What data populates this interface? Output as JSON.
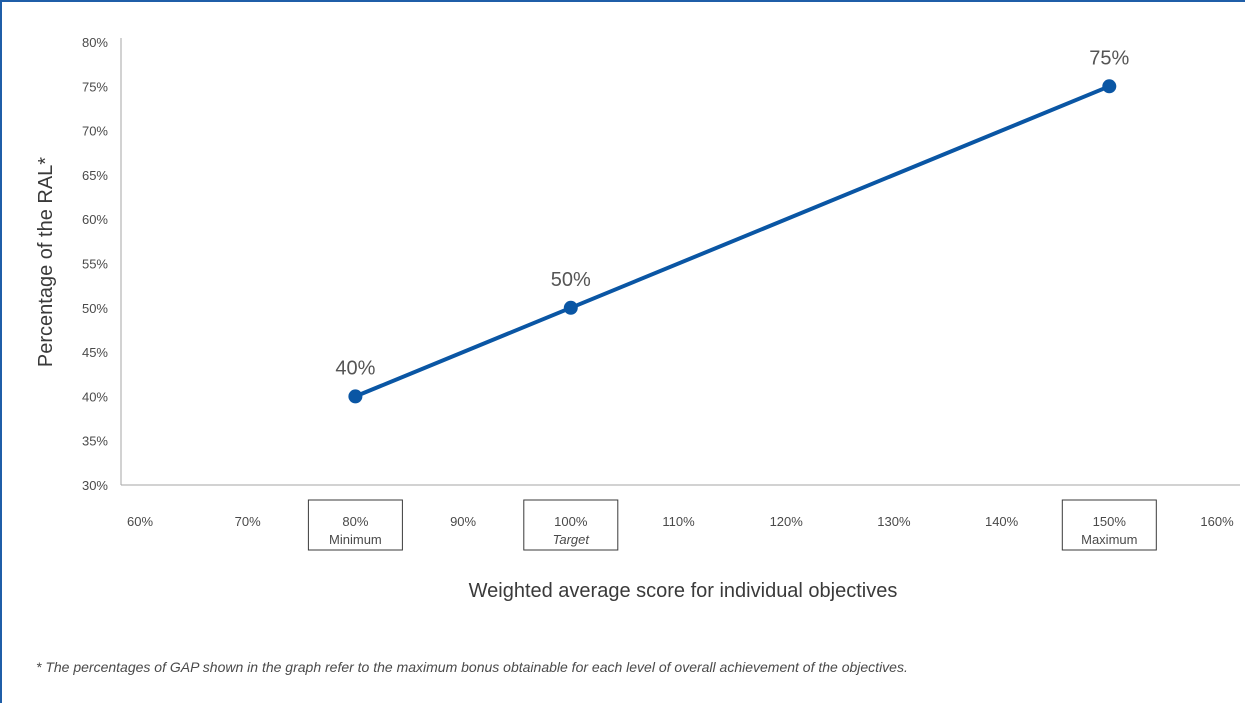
{
  "chart_data": {
    "type": "line",
    "x": [
      80,
      100,
      150
    ],
    "y": [
      40,
      50,
      75
    ],
    "data_labels": [
      "40%",
      "50%",
      "75%"
    ],
    "xlabel": "Weighted average score for individual objectives",
    "ylabel": "Percentage of the RAL*",
    "xlim": [
      60,
      160
    ],
    "ylim": [
      30,
      80
    ],
    "x_ticks": [
      {
        "value": 60,
        "label": "60%"
      },
      {
        "value": 70,
        "label": "70%"
      },
      {
        "value": 80,
        "label": "80%",
        "sublabel": "Minimum",
        "boxed": true
      },
      {
        "value": 90,
        "label": "90%"
      },
      {
        "value": 100,
        "label": "100%",
        "sublabel": "Target",
        "boxed": true,
        "italic_sublabel": true
      },
      {
        "value": 110,
        "label": "110%"
      },
      {
        "value": 120,
        "label": "120%"
      },
      {
        "value": 130,
        "label": "130%"
      },
      {
        "value": 140,
        "label": "140%"
      },
      {
        "value": 150,
        "label": "150%",
        "sublabel": "Maximum",
        "boxed": true
      },
      {
        "value": 160,
        "label": "160%"
      }
    ],
    "y_ticks": [
      {
        "value": 30,
        "label": "30%"
      },
      {
        "value": 35,
        "label": "35%"
      },
      {
        "value": 40,
        "label": "40%"
      },
      {
        "value": 45,
        "label": "45%"
      },
      {
        "value": 50,
        "label": "50%"
      },
      {
        "value": 55,
        "label": "55%"
      },
      {
        "value": 60,
        "label": "60%"
      },
      {
        "value": 65,
        "label": "65%"
      },
      {
        "value": 70,
        "label": "70%"
      },
      {
        "value": 75,
        "label": "75%"
      },
      {
        "value": 80,
        "label": "80%"
      }
    ],
    "grid": false,
    "line_color": "#0a56a4"
  },
  "footnote": "* The percentages of GAP shown in the graph refer to the maximum bonus obtainable for each level of overall achievement of the objectives.",
  "colors": {
    "frame": "#1f5ea8",
    "axis": "#a6a6a6",
    "series": "#0a56a4"
  }
}
